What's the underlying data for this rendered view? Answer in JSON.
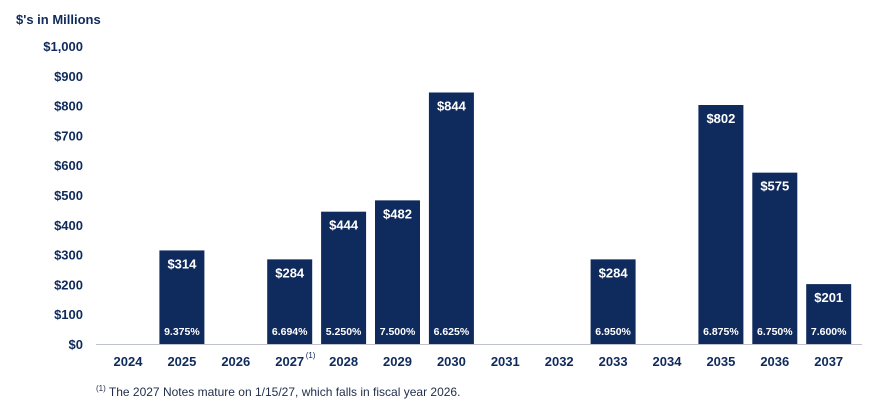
{
  "chart_data": {
    "type": "bar",
    "unit_label": "$'s in Millions",
    "categories": [
      "2024",
      "2025",
      "2026",
      "2027",
      "2028",
      "2029",
      "2030",
      "2031",
      "2032",
      "2033",
      "2034",
      "2035",
      "2036",
      "2037"
    ],
    "category_superscripts": {
      "2027": "(1)"
    },
    "values": [
      0,
      314,
      0,
      284,
      444,
      482,
      844,
      0,
      0,
      284,
      0,
      802,
      575,
      201
    ],
    "value_labels": [
      "",
      "$314",
      "",
      "$284",
      "$444",
      "$482",
      "$844",
      "",
      "",
      "$284",
      "",
      "$802",
      "$575",
      "$201"
    ],
    "rate_labels": [
      "",
      "9.375%",
      "",
      "6.694%",
      "5.250%",
      "7.500%",
      "6.625%",
      "",
      "",
      "6.950%",
      "",
      "6.875%",
      "6.750%",
      "7.600%"
    ],
    "y_ticks": [
      "$0",
      "$100",
      "$200",
      "$300",
      "$400",
      "$500",
      "$600",
      "$700",
      "$800",
      "$900",
      "$1,000"
    ],
    "ylim": [
      0,
      1000
    ],
    "grid": false,
    "bar_color": "#0f2a5c"
  },
  "footnote": {
    "marker": "(1)",
    "text": " The 2027 Notes mature on 1/15/27, which falls in fiscal year 2026."
  }
}
